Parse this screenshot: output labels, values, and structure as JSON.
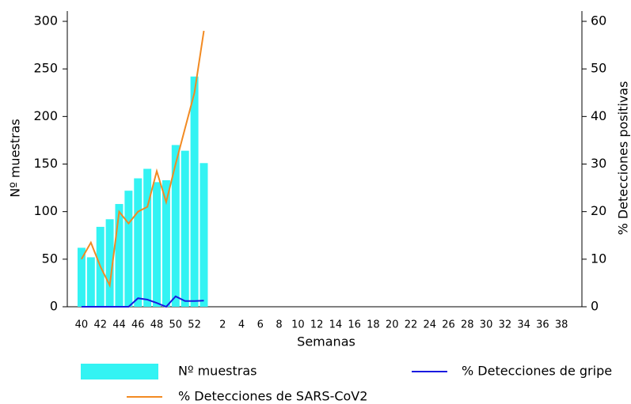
{
  "chart_data": {
    "type": "bar",
    "x_label": "Semanas",
    "y_label": "Nº muestras",
    "y2_label": "% Detecciones positivas",
    "categories": [
      "40",
      null,
      "42",
      null,
      "44",
      null,
      "46",
      null,
      "48",
      null,
      "50",
      null,
      "52",
      null,
      null,
      "2",
      null,
      "4",
      null,
      "6",
      null,
      "8",
      null,
      "10",
      null,
      "12",
      null,
      "14",
      null,
      "16",
      null,
      "18",
      null,
      "20",
      null,
      "22",
      null,
      "24",
      null,
      "26",
      null,
      "28",
      null,
      "30",
      null,
      "32",
      null,
      "34",
      null,
      "36",
      null,
      "38",
      null
    ],
    "ylim": [
      0,
      300
    ],
    "yticks": [
      0,
      50,
      100,
      150,
      200,
      250,
      300
    ],
    "y2lim": [
      0,
      60
    ],
    "y2ticks": [
      0,
      10,
      20,
      30,
      40,
      50,
      60
    ],
    "series": [
      {
        "name": "Nº muestras",
        "type": "bar",
        "color": "#33f3f3",
        "values": [
          62,
          52,
          84,
          92,
          108,
          122,
          135,
          145,
          131,
          133,
          170,
          164,
          242,
          151,
          null,
          null,
          null,
          null,
          null,
          null,
          null,
          null,
          null,
          null,
          null,
          null,
          null,
          null,
          null,
          null,
          null,
          null,
          null,
          null,
          null,
          null,
          null,
          null,
          null,
          null,
          null,
          null,
          null,
          null,
          null,
          null,
          null,
          null,
          null,
          null,
          null,
          null,
          null
        ]
      },
      {
        "name": "% Detecciones de gripe",
        "type": "line",
        "axis": "y2",
        "color": "#1a1ae0",
        "values": [
          0,
          0,
          0,
          0,
          0,
          0,
          1.8,
          1.5,
          0.8,
          0,
          2.2,
          1.2,
          1.2,
          1.3,
          null,
          null,
          null,
          null,
          null,
          null,
          null,
          null,
          null,
          null,
          null,
          null,
          null,
          null,
          null,
          null,
          null,
          null,
          null,
          null,
          null,
          null,
          null,
          null,
          null,
          null,
          null,
          null,
          null,
          null,
          null,
          null,
          null,
          null,
          null,
          null,
          null,
          null,
          null
        ]
      },
      {
        "name": "% Detecciones de SARS-CoV2",
        "type": "line",
        "axis": "y2",
        "color": "#f28a22",
        "values": [
          10,
          13.5,
          8.5,
          4.5,
          20,
          17.5,
          20,
          21,
          28.5,
          22,
          30,
          37.5,
          45,
          58,
          null,
          null,
          null,
          null,
          null,
          null,
          null,
          null,
          null,
          null,
          null,
          null,
          null,
          null,
          null,
          null,
          null,
          null,
          null,
          null,
          null,
          null,
          null,
          null,
          null,
          null,
          null,
          null,
          null,
          null,
          null,
          null,
          null,
          null,
          null,
          null,
          null,
          null,
          null
        ]
      }
    ]
  }
}
